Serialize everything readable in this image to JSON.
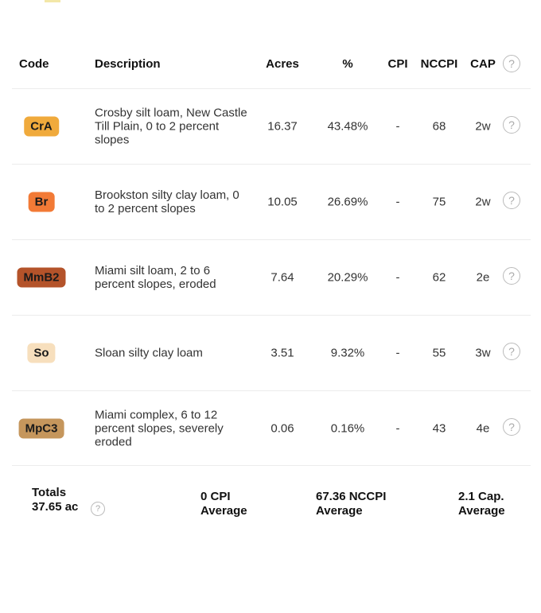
{
  "header": {
    "code": "Code",
    "description": "Description",
    "acres": "Acres",
    "percent": "%",
    "cpi": "CPI",
    "nccpi": "NCCPI",
    "cap": "CAP"
  },
  "rows": [
    {
      "code": "CrA",
      "color": "#f0aa3c",
      "description": "Crosby silt loam, New Castle Till Plain, 0 to 2 percent slopes",
      "acres": "16.37",
      "percent": "43.48%",
      "cpi": "-",
      "nccpi": "68",
      "cap": "2w"
    },
    {
      "code": "Br",
      "color": "#f27a36",
      "description": "Brookston silty clay loam, 0 to 2 percent slopes",
      "acres": "10.05",
      "percent": "26.69%",
      "cpi": "-",
      "nccpi": "75",
      "cap": "2w"
    },
    {
      "code": "MmB2",
      "color": "#b4532a",
      "description": "Miami silt loam, 2 to 6 percent slopes, eroded",
      "acres": "7.64",
      "percent": "20.29%",
      "cpi": "-",
      "nccpi": "62",
      "cap": "2e"
    },
    {
      "code": "So",
      "color": "#f7dfbd",
      "description": "Sloan silty clay loam",
      "acres": "3.51",
      "percent": "9.32%",
      "cpi": "-",
      "nccpi": "55",
      "cap": "3w"
    },
    {
      "code": "MpC3",
      "color": "#c5965c",
      "description": "Miami complex, 6 to 12 percent slopes, severely eroded",
      "acres": "0.06",
      "percent": "0.16%",
      "cpi": "-",
      "nccpi": "43",
      "cap": "4e"
    }
  ],
  "totals": {
    "label": "Totals",
    "acres": "37.65 ac",
    "cpi_value": "0 CPI",
    "cpi_label": "Average",
    "nccpi_value": "67.36 NCCPI",
    "nccpi_label": "Average",
    "cap_value": "2.1 Cap.",
    "cap_label": "Average"
  },
  "help_glyph": "?"
}
